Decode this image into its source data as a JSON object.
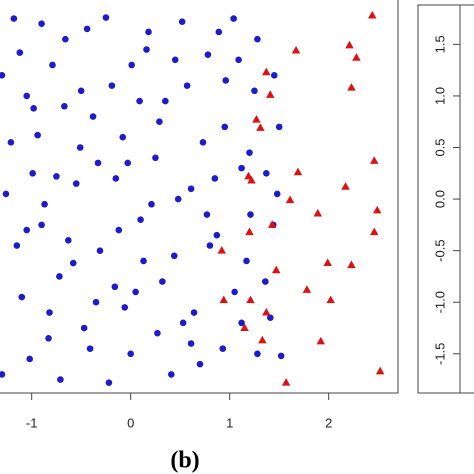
{
  "chart_data": [
    {
      "type": "scatter",
      "caption": "(b)",
      "xlim": [
        -1.32,
        2.7
      ],
      "ylim": [
        -1.88,
        1.93
      ],
      "xticks": [
        -1,
        0,
        1,
        2
      ],
      "series": [
        {
          "color": "#1c1ccc",
          "marker": "circle",
          "x": [
            -1.3,
            -1.21,
            -1.12,
            -1.05,
            -0.98,
            -0.9,
            -0.82,
            -0.75,
            -0.66,
            -0.58,
            -0.5,
            -0.41,
            -0.33,
            -0.25,
            -0.16,
            -0.08,
            0.01,
            0.1,
            0.18,
            0.27,
            0.35,
            0.44,
            0.52,
            0.61,
            0.7,
            0.78,
            0.87,
            0.95,
            1.04,
            1.12,
            1.2,
            1.28,
            1.36,
            1.45,
            1.52,
            -1.3,
            -1.18,
            -1.02,
            -0.87,
            -0.71,
            -0.55,
            -0.38,
            -0.22,
            -0.06,
            0.09,
            0.25,
            0.41,
            0.57,
            0.73,
            0.89,
            1.05,
            1.21,
            1.37,
            1.5,
            -1.26,
            -1.1,
            -0.94,
            -0.79,
            -0.63,
            -0.47,
            -0.31,
            -0.15,
            0.0,
            0.16,
            0.32,
            0.48,
            0.64,
            0.8,
            0.96,
            1.12,
            1.28,
            1.44,
            -1.15,
            -0.99,
            -0.83,
            -0.67,
            -0.51,
            -0.35,
            -0.19,
            -0.03,
            0.13,
            0.29,
            0.45,
            0.61,
            0.77,
            0.93,
            1.09,
            1.25,
            1.41,
            -1.05,
            -0.72,
            -0.44,
            -0.12,
            0.21,
            0.53,
            0.85,
            1.17,
            1.48,
            -0.9,
            0.05
          ],
          "values": [
            1.2,
            0.55,
            1.42,
            -0.3,
            0.88,
            1.7,
            -1.1,
            0.22,
            1.55,
            -0.62,
            1.05,
            -1.45,
            0.35,
            1.76,
            -0.85,
            0.6,
            1.3,
            -0.2,
            1.62,
            -1.3,
            0.95,
            -0.55,
            1.72,
            0.1,
            -1.6,
            1.4,
            -0.35,
            0.7,
            1.75,
            -1.2,
            0.45,
            1.55,
            -0.8,
            1.2,
            -1.52,
            -1.7,
            1.75,
            -1.55,
            -0.05,
            -1.75,
            0.15,
            0.8,
            -1.78,
            -1.05,
            0.95,
            0.4,
            -1.7,
            1.1,
            0.55,
            1.62,
            -0.9,
            -0.15,
            0.25,
            0.7,
            0.05,
            -0.95,
            0.62,
            1.3,
            -0.4,
            -1.25,
            -0.5,
            0.2,
            -1.5,
            1.45,
            -0.8,
            0.0,
            -1.1,
            -0.45,
            1.15,
            0.3,
            -1.5,
            -0.25,
            -0.45,
            0.25,
            -1.35,
            0.9,
            0.5,
            -1.0,
            1.1,
            0.35,
            -0.6,
            0.75,
            1.35,
            -1.4,
            -0.15,
            -1.45,
            1.35,
            1.05,
            -1.15,
            1.0,
            -0.75,
            1.65,
            -0.3,
            -0.05,
            -1.2,
            0.2,
            -0.6,
            0.05,
            -0.25,
            -0.9
          ]
        },
        {
          "color": "#dd1111",
          "marker": "triangle",
          "x": [
            2.44,
            1.67,
            2.21,
            2.28,
            2.23,
            1.37,
            1.41,
            1.27,
            1.31,
            2.46,
            1.69,
            2.17,
            1.19,
            1.22,
            1.61,
            2.49,
            2.46,
            1.89,
            1.43,
            1.2,
            0.92,
            2.23,
            1.99,
            1.47,
            1.78,
            2.02,
            0.94,
            1.21,
            1.37,
            1.15,
            1.92,
            1.33,
            1.57,
            2.52
          ],
          "values": [
            1.78,
            1.44,
            1.49,
            1.37,
            1.08,
            1.23,
            1.01,
            0.77,
            0.69,
            0.37,
            0.26,
            0.12,
            0.22,
            0.18,
            -0.01,
            -0.11,
            -0.32,
            -0.14,
            -0.25,
            -0.32,
            -0.5,
            -0.64,
            -0.62,
            -0.69,
            -0.88,
            -0.98,
            -0.98,
            -0.98,
            -1.1,
            -1.25,
            -1.38,
            -1.37,
            -1.78,
            -1.67
          ]
        }
      ]
    },
    {
      "type": "scatter",
      "ylim": [
        -1.88,
        1.93
      ],
      "yticks": [
        -1.5,
        {
          "value": -1,
          "label": "-1.0"
        },
        -0.5,
        {
          "value": 0,
          "label": "0.0"
        },
        0.5,
        {
          "value": 1,
          "label": "1.0"
        },
        1.5
      ]
    }
  ]
}
